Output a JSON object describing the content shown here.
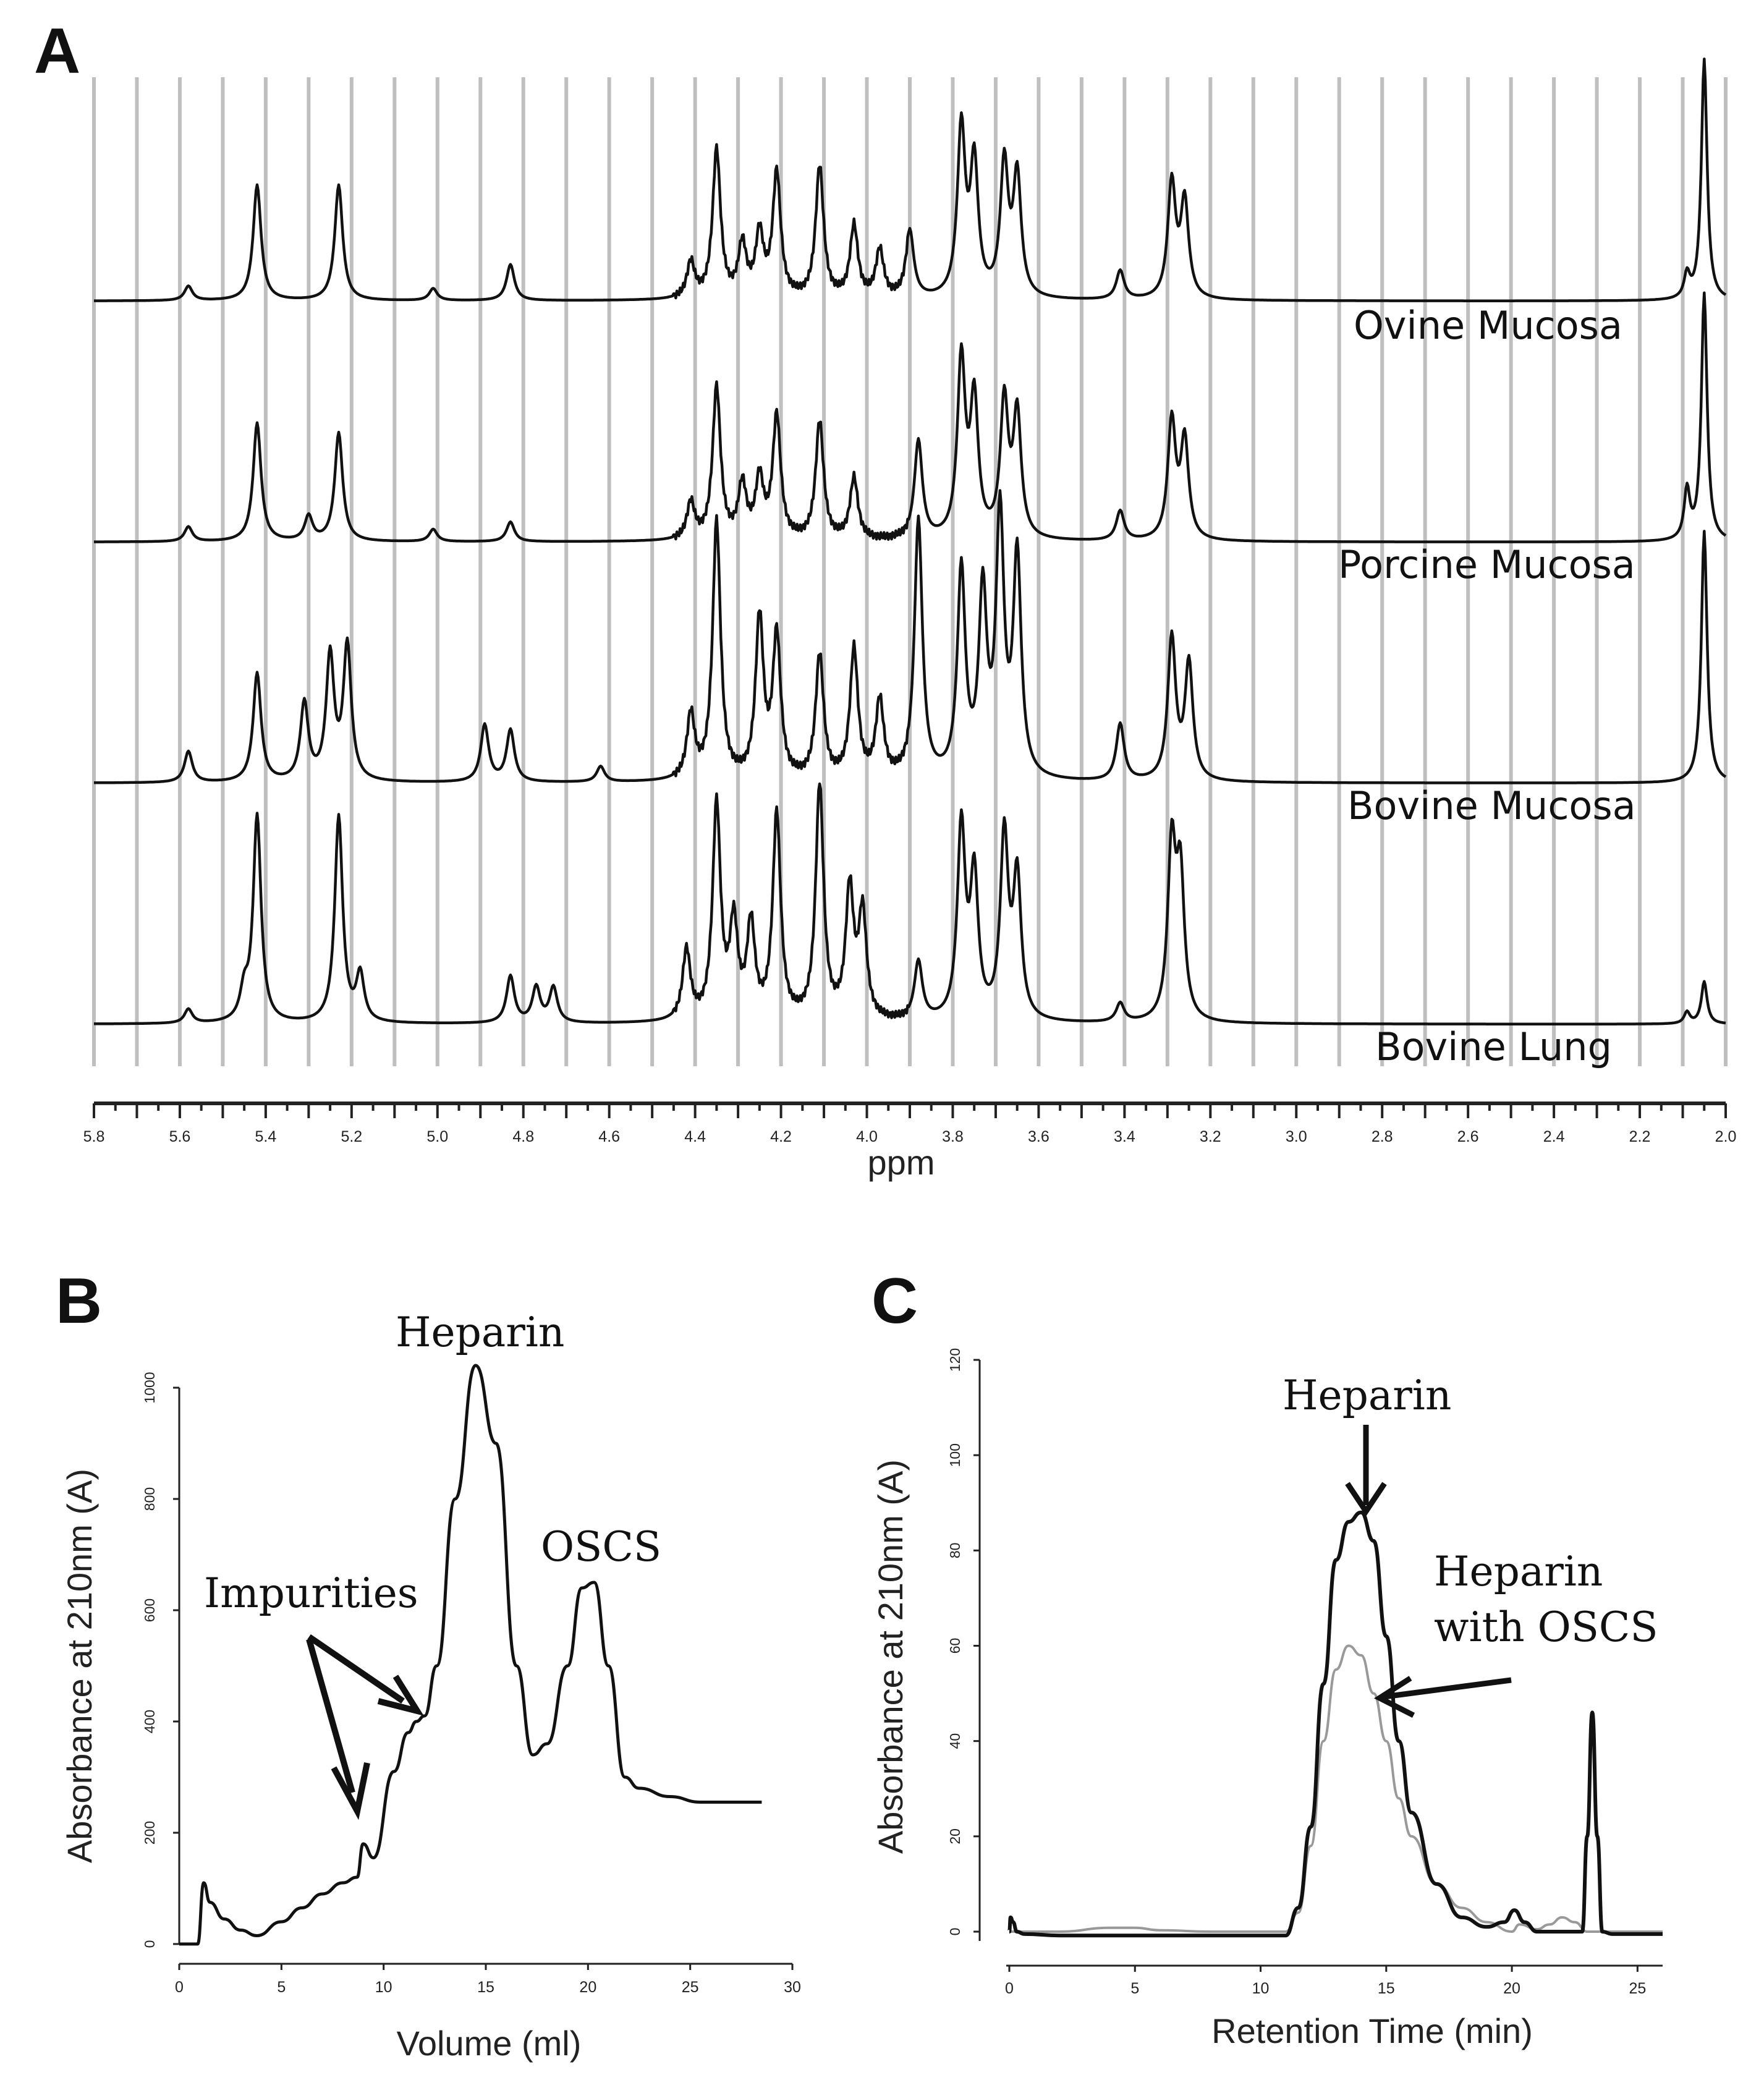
{
  "chart_data": [
    {
      "panel": "A",
      "type": "line",
      "xlabel": "ppm",
      "xlim": [
        5.8,
        2.0
      ],
      "x_ticks": [
        "5.8",
        "5.6",
        "5.4",
        "5.2",
        "5.0",
        "4.8",
        "4.6",
        "4.4",
        "4.2",
        "4.0",
        "3.8",
        "3.6",
        "3.4",
        "3.2",
        "3.0",
        "2.8",
        "2.6",
        "2.4",
        "2.2",
        "2.0"
      ],
      "gridlines_ppm": [
        5.8,
        5.7,
        5.6,
        5.5,
        5.4,
        5.3,
        5.2,
        5.1,
        5.0,
        4.9,
        4.8,
        4.7,
        4.6,
        4.5,
        4.4,
        4.3,
        4.2,
        4.1,
        4.0,
        3.9,
        3.8,
        3.7,
        3.6,
        3.5,
        3.4,
        3.3,
        3.2,
        3.1,
        3.0,
        2.9,
        2.8,
        2.7,
        2.6,
        2.5,
        2.4,
        2.3,
        2.2,
        2.1,
        2.0
      ],
      "series": [
        {
          "name": "Ovine Mucosa",
          "peaks": [
            [
              5.58,
              0.06
            ],
            [
              5.42,
              0.48
            ],
            [
              5.23,
              0.48
            ],
            [
              5.01,
              0.05
            ],
            [
              4.83,
              0.15
            ],
            [
              4.41,
              0.15
            ],
            [
              4.35,
              0.62
            ],
            [
              4.29,
              0.22
            ],
            [
              4.25,
              0.26
            ],
            [
              4.21,
              0.52
            ],
            [
              4.11,
              0.55
            ],
            [
              4.03,
              0.3
            ],
            [
              3.97,
              0.2
            ],
            [
              3.9,
              0.28
            ],
            [
              3.78,
              0.7
            ],
            [
              3.75,
              0.55
            ],
            [
              3.68,
              0.55
            ],
            [
              3.65,
              0.5
            ],
            [
              3.41,
              0.12
            ],
            [
              3.29,
              0.48
            ],
            [
              3.26,
              0.4
            ],
            [
              2.09,
              0.1
            ],
            [
              2.05,
              1.0
            ]
          ]
        },
        {
          "name": "Porcine Mucosa",
          "peaks": [
            [
              5.58,
              0.06
            ],
            [
              5.42,
              0.48
            ],
            [
              5.3,
              0.1
            ],
            [
              5.23,
              0.44
            ],
            [
              5.01,
              0.05
            ],
            [
              4.83,
              0.08
            ],
            [
              4.41,
              0.15
            ],
            [
              4.35,
              0.62
            ],
            [
              4.29,
              0.22
            ],
            [
              4.25,
              0.24
            ],
            [
              4.21,
              0.5
            ],
            [
              4.11,
              0.48
            ],
            [
              4.03,
              0.25
            ],
            [
              3.88,
              0.4
            ],
            [
              3.78,
              0.72
            ],
            [
              3.75,
              0.55
            ],
            [
              3.68,
              0.55
            ],
            [
              3.65,
              0.5
            ],
            [
              3.41,
              0.12
            ],
            [
              3.29,
              0.48
            ],
            [
              3.26,
              0.4
            ],
            [
              2.09,
              0.2
            ],
            [
              2.05,
              1.0
            ]
          ]
        },
        {
          "name": "Bovine Mucosa",
          "peaks": [
            [
              5.58,
              0.12
            ],
            [
              5.42,
              0.42
            ],
            [
              5.31,
              0.3
            ],
            [
              5.25,
              0.48
            ],
            [
              5.21,
              0.52
            ],
            [
              4.89,
              0.22
            ],
            [
              4.83,
              0.2
            ],
            [
              4.62,
              0.06
            ],
            [
              4.41,
              0.25
            ],
            [
              4.35,
              1.0
            ],
            [
              4.25,
              0.62
            ],
            [
              4.21,
              0.55
            ],
            [
              4.11,
              0.48
            ],
            [
              4.03,
              0.5
            ],
            [
              3.97,
              0.3
            ],
            [
              3.88,
              1.0
            ],
            [
              3.78,
              0.8
            ],
            [
              3.73,
              0.7
            ],
            [
              3.69,
              1.0
            ],
            [
              3.65,
              0.85
            ],
            [
              3.41,
              0.22
            ],
            [
              3.29,
              0.55
            ],
            [
              3.25,
              0.45
            ],
            [
              2.05,
              0.97
            ]
          ]
        },
        {
          "name": "Bovine Lung",
          "peaks": [
            [
              5.58,
              0.06
            ],
            [
              5.45,
              0.12
            ],
            [
              5.42,
              0.88
            ],
            [
              5.23,
              0.88
            ],
            [
              5.18,
              0.2
            ],
            [
              4.83,
              0.2
            ],
            [
              4.77,
              0.15
            ],
            [
              4.73,
              0.15
            ],
            [
              4.42,
              0.3
            ],
            [
              4.35,
              0.92
            ],
            [
              4.31,
              0.4
            ],
            [
              4.27,
              0.4
            ],
            [
              4.21,
              0.88
            ],
            [
              4.11,
              1.0
            ],
            [
              4.04,
              0.55
            ],
            [
              4.01,
              0.45
            ],
            [
              3.88,
              0.25
            ],
            [
              3.78,
              0.82
            ],
            [
              3.75,
              0.6
            ],
            [
              3.68,
              0.78
            ],
            [
              3.65,
              0.6
            ],
            [
              3.41,
              0.08
            ],
            [
              3.29,
              0.73
            ],
            [
              3.27,
              0.6
            ],
            [
              2.09,
              0.05
            ],
            [
              2.05,
              0.18
            ]
          ]
        }
      ]
    },
    {
      "panel": "B",
      "type": "line",
      "xlabel": "Volume (ml)",
      "ylabel": "Absorbance at 210nm (A)",
      "xlim": [
        0,
        30
      ],
      "ylim": [
        0,
        1000
      ],
      "x_ticks": [
        "0",
        "5",
        "10",
        "15",
        "20",
        "25",
        "30"
      ],
      "y_ticks": [
        "0",
        "200",
        "400",
        "600",
        "800",
        "1000"
      ],
      "series": [
        {
          "name": "Heparin with OSCS",
          "x": [
            0,
            0.9,
            1.2,
            1.5,
            2.2,
            3,
            3.8,
            5,
            6,
            7,
            8,
            8.7,
            9,
            9.5,
            10.5,
            11.2,
            11.6,
            12,
            12.6,
            13.5,
            14.5,
            15.5,
            16.5,
            17.3,
            18,
            19,
            19.7,
            20.3,
            21,
            21.8,
            22.5,
            24,
            25.5,
            28.5
          ],
          "y": [
            0,
            0,
            110,
            75,
            45,
            25,
            15,
            40,
            65,
            90,
            110,
            120,
            180,
            155,
            310,
            380,
            400,
            410,
            500,
            800,
            1040,
            900,
            500,
            340,
            360,
            500,
            640,
            650,
            500,
            300,
            280,
            265,
            255,
            255
          ]
        }
      ],
      "annotations": [
        "Heparin",
        "OSCS",
        "Impurities"
      ]
    },
    {
      "panel": "C",
      "type": "line",
      "xlabel": "Retention Time  (min)",
      "ylabel": "Absorbance at 210nm (A)",
      "xlim": [
        0,
        26
      ],
      "ylim": [
        0,
        120
      ],
      "x_ticks": [
        "0",
        "5",
        "10",
        "15",
        "20",
        "25"
      ],
      "y_ticks": [
        "0",
        "20",
        "40",
        "60",
        "80",
        "100",
        "120"
      ],
      "series": [
        {
          "name": "Heparin",
          "x": [
            0,
            0.05,
            0.15,
            0.3,
            0.6,
            2,
            5,
            8,
            11,
            11.5,
            12,
            12.5,
            13,
            13.5,
            14,
            14.5,
            15,
            15.5,
            16,
            17,
            18,
            19,
            19.7,
            20.1,
            20.5,
            21,
            22,
            22.8,
            23.0,
            23.2,
            23.4,
            23.6,
            24,
            26
          ],
          "y": [
            0,
            3,
            2,
            0,
            -0.5,
            -0.8,
            -0.8,
            -0.8,
            -0.8,
            5,
            22,
            52,
            78,
            86,
            88,
            82,
            62,
            40,
            25,
            10,
            3,
            1,
            2,
            4.5,
            2,
            0,
            0,
            0,
            20,
            46,
            20,
            0,
            -0.5,
            -0.5
          ]
        },
        {
          "name": "Heparin with OSCS",
          "x": [
            0,
            2,
            4,
            5,
            6,
            8,
            11,
            11.5,
            12,
            12.5,
            13,
            13.5,
            14,
            14.5,
            15,
            15.5,
            16,
            17,
            18,
            19,
            20,
            20.3,
            21,
            21.5,
            22,
            22.5,
            23,
            24,
            26
          ],
          "y": [
            0,
            0,
            0.8,
            0.8,
            0.3,
            0,
            0,
            4,
            18,
            40,
            55,
            60,
            58,
            50,
            40,
            28,
            20,
            10,
            5,
            2,
            0,
            1.5,
            0.5,
            1.5,
            3,
            2,
            0,
            0,
            0
          ]
        }
      ],
      "annotations": [
        "Heparin",
        "Heparin",
        "with OSCS"
      ]
    }
  ],
  "panels": {
    "a": {
      "letter": "A",
      "xlabel": "ppm",
      "trace_labels": [
        "Ovine Mucosa",
        "Porcine Mucosa",
        "Bovine Mucosa",
        "Bovine Lung"
      ]
    },
    "b": {
      "letter": "B",
      "xlabel": "Volume (ml)",
      "ylabel": "Absorbance at 210nm (A)",
      "annot_heparin": "Heparin",
      "annot_oscs": "OSCS",
      "annot_impurities": "Impurities"
    },
    "c": {
      "letter": "C",
      "xlabel": "Retention Time  (min)",
      "ylabel": "Absorbance at 210nm (A)",
      "annot_heparin": "Heparin",
      "annot_oscs_line1": "Heparin",
      "annot_oscs_line2": "with OSCS"
    }
  },
  "colors": {
    "trace": "#111111",
    "trace_light": "#999999",
    "grid": "#bfbfbf",
    "axis": "#222222"
  }
}
